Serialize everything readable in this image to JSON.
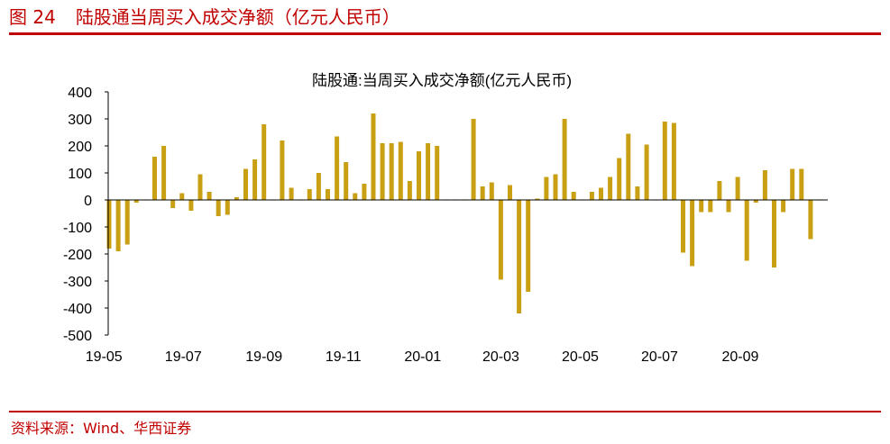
{
  "header": {
    "fig_num": "图 24",
    "title": "陆股通当周买入成交净额（亿元人民币）"
  },
  "source": "资料来源：Wind、华西证券",
  "colors": {
    "accent": "#c00000",
    "bar": "#c9a013",
    "axis": "#000000"
  },
  "chart_data": {
    "type": "bar",
    "title": "陆股通:当周买入成交净额(亿元人民币)",
    "xlabel": "",
    "ylabel": "",
    "ylim": [
      -500,
      400
    ],
    "yticks": [
      400,
      300,
      200,
      100,
      0,
      -100,
      -200,
      -300,
      -400,
      -500
    ],
    "grid": false,
    "legend": "none",
    "xtick_labels": [
      "19-05",
      "19-07",
      "19-09",
      "19-11",
      "20-01",
      "20-03",
      "20-05",
      "20-07",
      "20-09"
    ],
    "weeks": [
      "19-05-05",
      "19-05-12",
      "19-05-19",
      "19-05-26",
      "19-06-02",
      "19-06-09",
      "19-06-16",
      "19-06-23",
      "19-06-30",
      "19-07-07",
      "19-07-14",
      "19-07-21",
      "19-07-28",
      "19-08-04",
      "19-08-11",
      "19-08-18",
      "19-08-25",
      "19-09-01",
      "19-09-08",
      "19-09-15",
      "19-09-22",
      "19-09-29",
      "19-10-06",
      "19-10-13",
      "19-10-20",
      "19-10-27",
      "19-11-03",
      "19-11-10",
      "19-11-17",
      "19-11-24",
      "19-12-01",
      "19-12-08",
      "19-12-15",
      "19-12-22",
      "19-12-29",
      "20-01-05",
      "20-01-12",
      "20-01-19",
      "20-01-26",
      "20-02-02",
      "20-02-09",
      "20-02-16",
      "20-02-23",
      "20-03-01",
      "20-03-08",
      "20-03-15",
      "20-03-22",
      "20-03-29",
      "20-04-05",
      "20-04-12",
      "20-04-19",
      "20-04-26",
      "20-05-03",
      "20-05-10",
      "20-05-17",
      "20-05-24",
      "20-05-31",
      "20-06-07",
      "20-06-14",
      "20-06-21",
      "20-06-28",
      "20-07-05",
      "20-07-12",
      "20-07-19",
      "20-07-26",
      "20-08-02",
      "20-08-09",
      "20-08-16",
      "20-08-23",
      "20-08-30",
      "20-09-06",
      "20-09-13",
      "20-09-20",
      "20-09-27",
      "20-10-04",
      "20-10-11",
      "20-10-18",
      "20-10-25",
      "20-11-01"
    ],
    "values": [
      -180,
      -190,
      -165,
      -10,
      0,
      160,
      200,
      -30,
      25,
      -40,
      95,
      30,
      -60,
      -55,
      10,
      115,
      150,
      280,
      0,
      220,
      45,
      0,
      40,
      100,
      40,
      235,
      140,
      25,
      60,
      320,
      210,
      210,
      215,
      70,
      180,
      210,
      200,
      0,
      0,
      0,
      300,
      50,
      65,
      -295,
      55,
      -420,
      -340,
      5,
      85,
      95,
      300,
      30,
      0,
      30,
      45,
      85,
      155,
      245,
      50,
      205,
      0,
      290,
      285,
      -195,
      -245,
      -45,
      -45,
      70,
      -45,
      85,
      -225,
      -10,
      110,
      -250,
      -45,
      115,
      115,
      -145,
      0
    ]
  }
}
